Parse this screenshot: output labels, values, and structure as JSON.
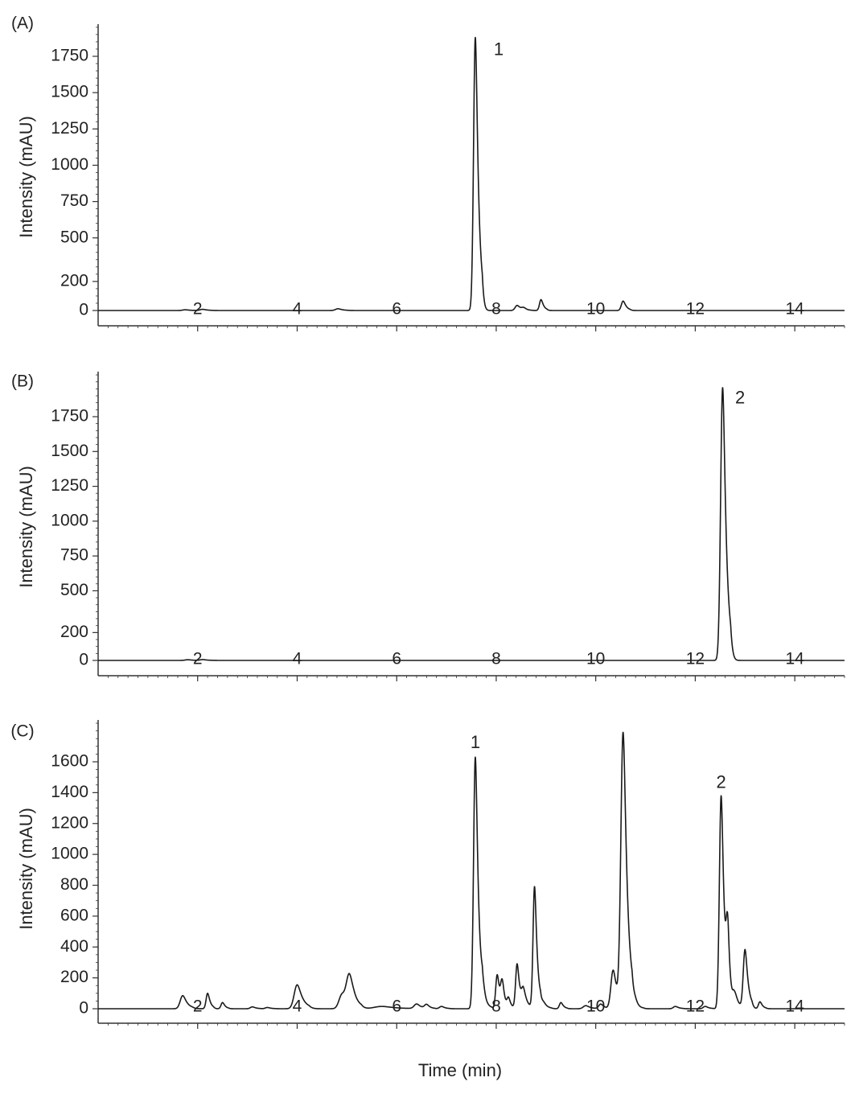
{
  "figure": {
    "xlabel": "Time (min)"
  },
  "chart_data": [
    {
      "type": "line",
      "panel": "(A)",
      "ylabel": "Intensity (mAU)",
      "xlabel": "",
      "xlim": [
        0,
        15
      ],
      "xticks": [
        2,
        4,
        6,
        8,
        10,
        12,
        14
      ],
      "yticks": [
        0,
        200,
        500,
        750,
        1000,
        1250,
        1500,
        1750
      ],
      "baseline": 0,
      "peaks": [
        {
          "t": 1.75,
          "h": 5,
          "w": 0.05
        },
        {
          "t": 2.1,
          "h": 8,
          "w": 0.05
        },
        {
          "t": 4.82,
          "h": 12,
          "w": 0.05
        },
        {
          "t": 7.58,
          "h": 1880,
          "w": 0.035
        },
        {
          "t": 8.42,
          "h": 35,
          "w": 0.04
        },
        {
          "t": 8.55,
          "h": 15,
          "w": 0.04
        },
        {
          "t": 8.9,
          "h": 75,
          "w": 0.03
        },
        {
          "t": 10.55,
          "h": 65,
          "w": 0.035
        }
      ],
      "annotations": [
        {
          "text": "1",
          "x": 8.05,
          "y": 1790
        }
      ]
    },
    {
      "type": "line",
      "panel": "(B)",
      "ylabel": "Intensity (mAU)",
      "xlabel": "",
      "xlim": [
        0,
        15
      ],
      "xticks": [
        2,
        4,
        6,
        8,
        10,
        12,
        14
      ],
      "yticks": [
        0,
        200,
        500,
        750,
        1000,
        1250,
        1500,
        1750
      ],
      "baseline": 0,
      "peaks": [
        {
          "t": 1.8,
          "h": 5,
          "w": 0.05
        },
        {
          "t": 2.1,
          "h": 6,
          "w": 0.05
        },
        {
          "t": 12.55,
          "h": 1960,
          "w": 0.04
        }
      ],
      "annotations": [
        {
          "text": "2",
          "x": 12.9,
          "y": 1880
        }
      ]
    },
    {
      "type": "line",
      "panel": "(C)",
      "ylabel": "Intensity (mAU)",
      "xlabel": "Time (min)",
      "xlim": [
        0,
        15
      ],
      "xticks": [
        2,
        4,
        6,
        8,
        10,
        12,
        14
      ],
      "yticks": [
        0,
        200,
        400,
        600,
        800,
        1000,
        1200,
        1400,
        1600
      ],
      "baseline": 0,
      "peaks": [
        {
          "t": 1.7,
          "h": 85,
          "w": 0.05
        },
        {
          "t": 2.2,
          "h": 100,
          "w": 0.03
        },
        {
          "t": 2.5,
          "h": 40,
          "w": 0.03
        },
        {
          "t": 3.1,
          "h": 12,
          "w": 0.04
        },
        {
          "t": 3.4,
          "h": 8,
          "w": 0.04
        },
        {
          "t": 4.0,
          "h": 155,
          "w": 0.06
        },
        {
          "t": 4.9,
          "h": 90,
          "w": 0.06
        },
        {
          "t": 5.05,
          "h": 200,
          "w": 0.06
        },
        {
          "t": 5.7,
          "h": 15,
          "w": 0.15
        },
        {
          "t": 6.4,
          "h": 30,
          "w": 0.05
        },
        {
          "t": 6.6,
          "h": 25,
          "w": 0.04
        },
        {
          "t": 6.9,
          "h": 15,
          "w": 0.04
        },
        {
          "t": 7.58,
          "h": 1630,
          "w": 0.035
        },
        {
          "t": 7.75,
          "h": 80,
          "w": 0.04
        },
        {
          "t": 8.02,
          "h": 220,
          "w": 0.03
        },
        {
          "t": 8.12,
          "h": 150,
          "w": 0.03
        },
        {
          "t": 8.25,
          "h": 60,
          "w": 0.03
        },
        {
          "t": 8.42,
          "h": 290,
          "w": 0.03
        },
        {
          "t": 8.55,
          "h": 110,
          "w": 0.04
        },
        {
          "t": 8.77,
          "h": 790,
          "w": 0.03
        },
        {
          "t": 8.95,
          "h": 40,
          "w": 0.04
        },
        {
          "t": 9.3,
          "h": 40,
          "w": 0.03
        },
        {
          "t": 9.8,
          "h": 20,
          "w": 0.05
        },
        {
          "t": 10.1,
          "h": 30,
          "w": 0.04
        },
        {
          "t": 10.35,
          "h": 250,
          "w": 0.045
        },
        {
          "t": 10.55,
          "h": 1770,
          "w": 0.045
        },
        {
          "t": 10.8,
          "h": 40,
          "w": 0.04
        },
        {
          "t": 11.6,
          "h": 15,
          "w": 0.04
        },
        {
          "t": 12.2,
          "h": 15,
          "w": 0.04
        },
        {
          "t": 12.52,
          "h": 1380,
          "w": 0.035
        },
        {
          "t": 12.65,
          "h": 400,
          "w": 0.03
        },
        {
          "t": 12.8,
          "h": 90,
          "w": 0.04
        },
        {
          "t": 13.0,
          "h": 380,
          "w": 0.035
        },
        {
          "t": 13.3,
          "h": 45,
          "w": 0.03
        }
      ],
      "annotations": [
        {
          "text": "1",
          "x": 7.58,
          "y": 1720
        },
        {
          "text": "2",
          "x": 12.52,
          "y": 1460
        }
      ]
    }
  ]
}
